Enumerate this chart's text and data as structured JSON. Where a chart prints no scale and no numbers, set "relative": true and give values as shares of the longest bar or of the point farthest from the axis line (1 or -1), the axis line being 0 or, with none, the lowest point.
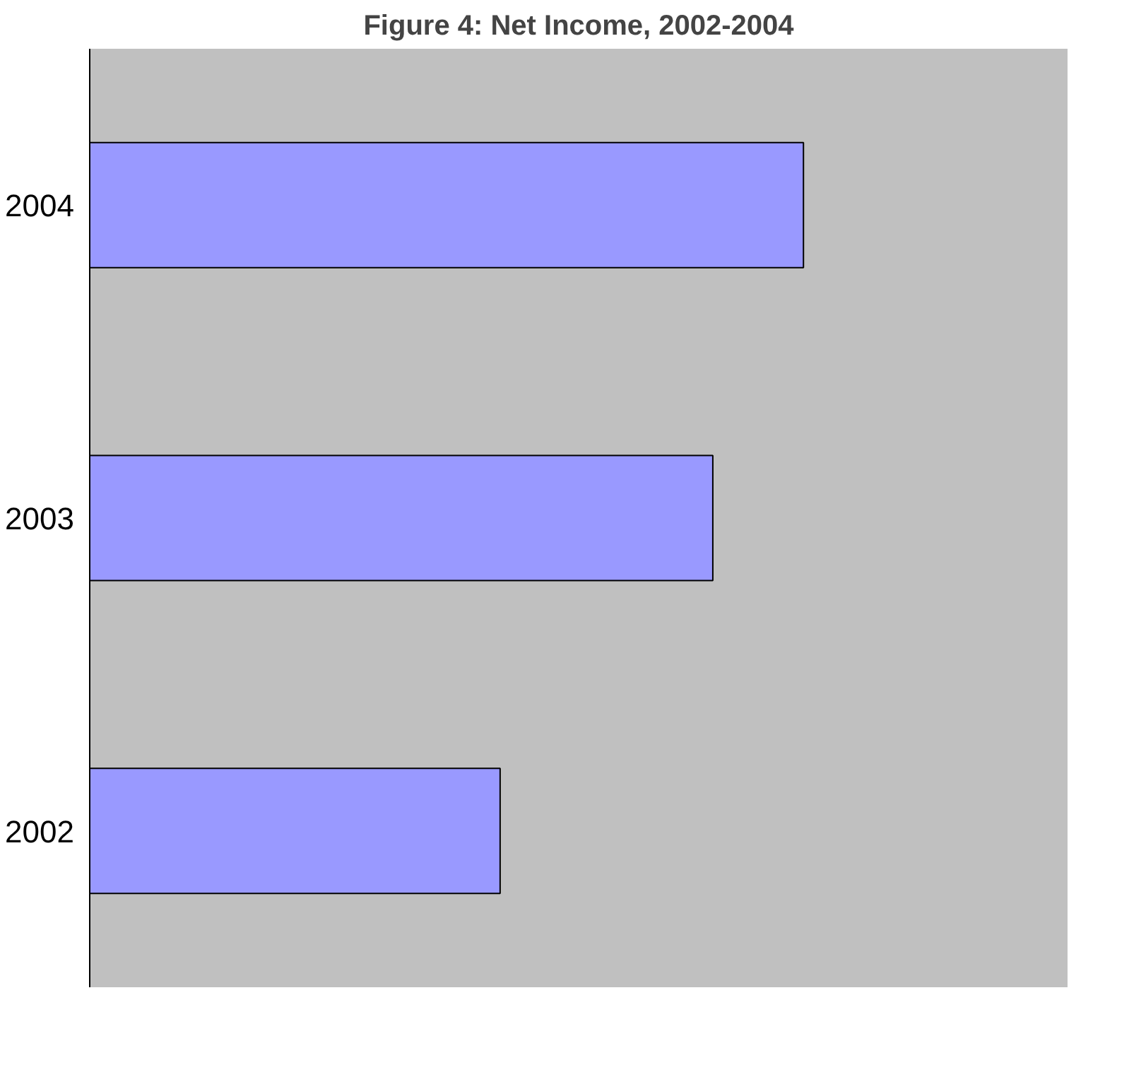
{
  "chart_data": {
    "type": "bar",
    "title": "Figure 4: Net Income, 2002-2004",
    "orientation": "horizontal",
    "relative": true,
    "categories": [
      "2004",
      "2003",
      "2002"
    ],
    "values": [
      1,
      0.873,
      0.575
    ],
    "color": "#9999ff"
  }
}
